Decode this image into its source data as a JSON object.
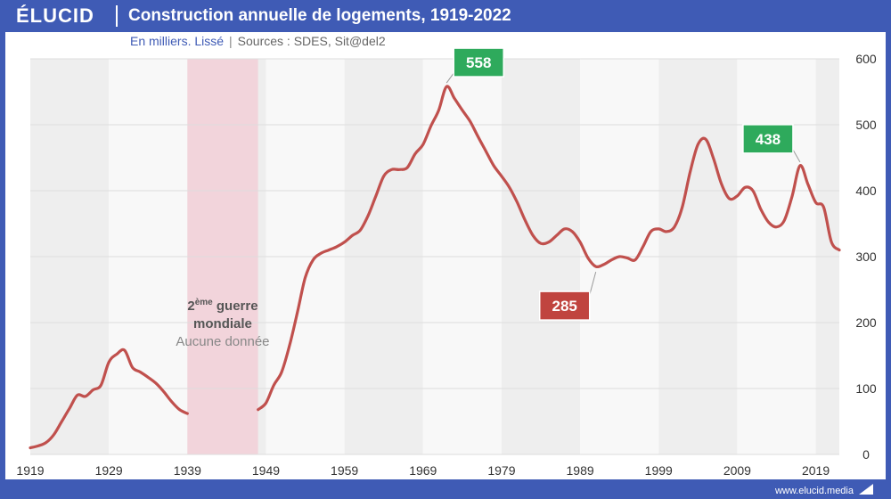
{
  "header": {
    "logo": "ÉLUCID",
    "title": "Construction annuelle de logements, 1919-2022"
  },
  "subtitle": {
    "unit": "En milliers. Lissé",
    "separator": "|",
    "sources": "Sources : SDES, Sit@del2"
  },
  "footer": {
    "site": "www.elucid.media"
  },
  "colors": {
    "brand": "#3f5bb5",
    "line": "#c0504d",
    "war_band": "#f2d4db",
    "callout_green": "#2eaa5c",
    "callout_red": "#c0443f"
  },
  "chart_data": {
    "type": "line",
    "title": "Construction annuelle de logements, 1919-2022",
    "subtitle": "En milliers. Lissé",
    "xlim": [
      1919,
      2022
    ],
    "ylim": [
      0,
      600
    ],
    "x_ticks": [
      "1919",
      "1929",
      "1939",
      "1949",
      "1959",
      "1969",
      "1979",
      "1989",
      "1999",
      "2009",
      "2019"
    ],
    "y_ticks": [
      "0",
      "100",
      "200",
      "300",
      "400",
      "500",
      "600"
    ],
    "y_axis_side": "right",
    "grid": true,
    "alternating_decade_bands": true,
    "series": [
      {
        "segments": [
          [
            [
              1919,
              10
            ],
            [
              1920,
              13
            ],
            [
              1921,
              18
            ],
            [
              1922,
              30
            ],
            [
              1923,
              50
            ],
            [
              1924,
              70
            ],
            [
              1925,
              90
            ],
            [
              1926,
              88
            ],
            [
              1927,
              98
            ],
            [
              1928,
              105
            ],
            [
              1929,
              140
            ],
            [
              1930,
              152
            ],
            [
              1931,
              158
            ],
            [
              1932,
              132
            ],
            [
              1933,
              125
            ],
            [
              1934,
              117
            ],
            [
              1935,
              108
            ],
            [
              1936,
              95
            ],
            [
              1937,
              80
            ],
            [
              1938,
              68
            ],
            [
              1939,
              62
            ]
          ],
          [
            [
              1948,
              68
            ],
            [
              1949,
              78
            ],
            [
              1950,
              105
            ],
            [
              1951,
              125
            ],
            [
              1952,
              165
            ],
            [
              1953,
              215
            ],
            [
              1954,
              268
            ],
            [
              1955,
              295
            ],
            [
              1956,
              305
            ],
            [
              1957,
              310
            ],
            [
              1958,
              315
            ],
            [
              1959,
              322
            ],
            [
              1960,
              332
            ],
            [
              1961,
              340
            ],
            [
              1962,
              362
            ],
            [
              1963,
              392
            ],
            [
              1964,
              422
            ],
            [
              1965,
              432
            ],
            [
              1966,
              432
            ],
            [
              1967,
              435
            ],
            [
              1968,
              456
            ],
            [
              1969,
              470
            ],
            [
              1970,
              498
            ],
            [
              1971,
              522
            ],
            [
              1972,
              558
            ],
            [
              1973,
              540
            ],
            [
              1974,
              522
            ],
            [
              1975,
              505
            ],
            [
              1976,
              482
            ],
            [
              1977,
              460
            ],
            [
              1978,
              438
            ],
            [
              1979,
              422
            ],
            [
              1980,
              405
            ],
            [
              1981,
              382
            ],
            [
              1982,
              355
            ],
            [
              1983,
              332
            ],
            [
              1984,
              320
            ],
            [
              1985,
              322
            ],
            [
              1986,
              332
            ],
            [
              1987,
              342
            ],
            [
              1988,
              338
            ],
            [
              1989,
              322
            ],
            [
              1990,
              298
            ],
            [
              1991,
              285
            ],
            [
              1992,
              288
            ],
            [
              1993,
              295
            ],
            [
              1994,
              300
            ],
            [
              1995,
              298
            ],
            [
              1996,
              295
            ],
            [
              1997,
              315
            ],
            [
              1998,
              338
            ],
            [
              1999,
              342
            ],
            [
              2000,
              338
            ],
            [
              2001,
              345
            ],
            [
              2002,
              375
            ],
            [
              2003,
              428
            ],
            [
              2004,
              470
            ],
            [
              2005,
              478
            ],
            [
              2006,
              448
            ],
            [
              2007,
              410
            ],
            [
              2008,
              388
            ],
            [
              2009,
              392
            ],
            [
              2010,
              405
            ],
            [
              2011,
              400
            ],
            [
              2012,
              372
            ],
            [
              2013,
              352
            ],
            [
              2014,
              345
            ],
            [
              2015,
              355
            ],
            [
              2016,
              392
            ],
            [
              2017,
              438
            ],
            [
              2018,
              410
            ],
            [
              2019,
              382
            ],
            [
              2020,
              375
            ],
            [
              2021,
              322
            ],
            [
              2022,
              310
            ]
          ]
        ]
      }
    ],
    "annotations": [
      {
        "label": "558",
        "x": 1972,
        "y": 558,
        "style": "green"
      },
      {
        "label": "285",
        "x": 1991,
        "y": 285,
        "style": "red"
      },
      {
        "label": "438",
        "x": 2017,
        "y": 438,
        "style": "green"
      }
    ],
    "shaded_region": {
      "x_range": [
        1939,
        1948
      ],
      "title": "2ème guerre mondiale",
      "title_main": "2",
      "title_sup": "ème",
      "title_rest": "guerre",
      "title_line2": "mondiale",
      "subtitle": "Aucune donnée"
    }
  }
}
